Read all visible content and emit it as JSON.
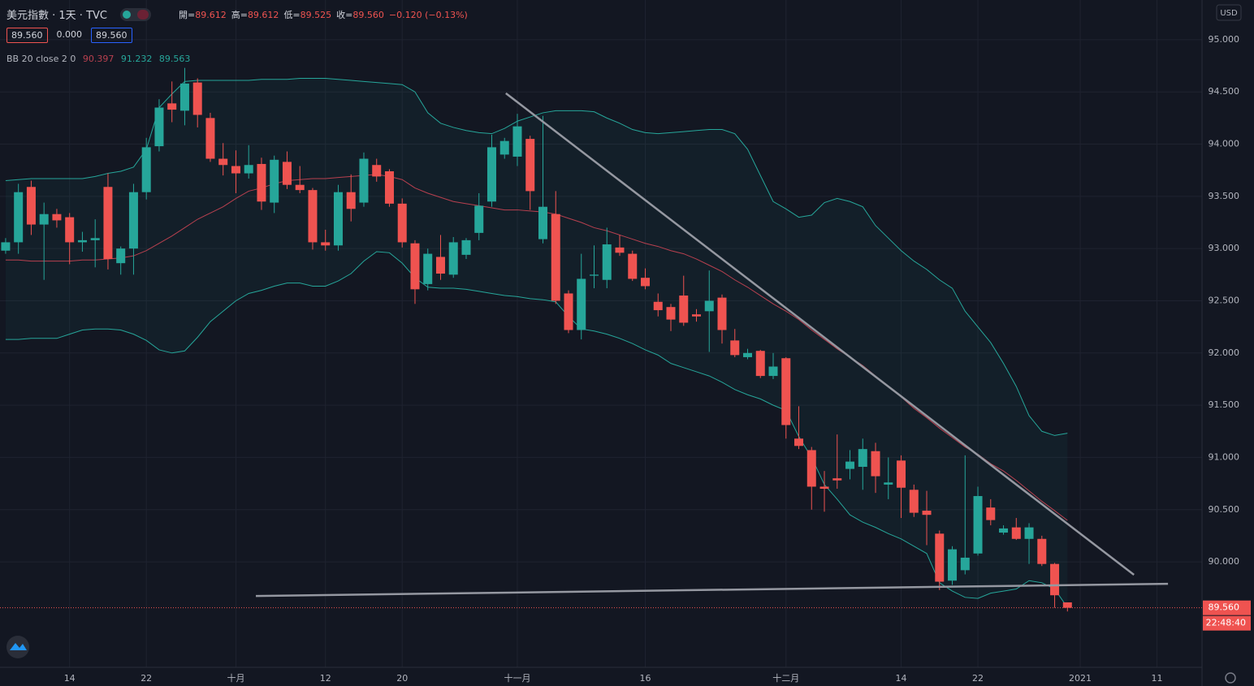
{
  "header": {
    "symbol": "美元指數 · 1天 · TVC",
    "quote": [
      {
        "label": "開=",
        "value": "89.612"
      },
      {
        "label": "高=",
        "value": "89.612"
      },
      {
        "label": "低=",
        "value": "89.525"
      },
      {
        "label": "收=",
        "value": "89.560"
      }
    ],
    "change": "−0.120 (−0.13%)",
    "badges": [
      "89.560",
      "0.000",
      "89.560"
    ],
    "currency": "USD",
    "price_tag": "89.560",
    "countdown": "22:48:40"
  },
  "chart_data": {
    "type": "candlestick",
    "up_color": "#26a69a",
    "down_color": "#ef5350",
    "open": [
      92.98,
      93.06,
      93.59,
      93.23,
      93.33,
      93.3,
      93.06,
      93.08,
      93.59,
      92.86,
      93.0,
      93.54,
      93.98,
      94.39,
      94.32,
      94.59,
      94.25,
      93.86,
      93.79,
      93.72,
      93.81,
      93.44,
      93.83,
      93.61,
      93.56,
      93.06,
      93.03,
      93.54,
      93.44,
      93.8,
      93.74,
      93.43,
      93.05,
      92.66,
      92.92,
      92.75,
      92.94,
      93.15,
      93.45,
      93.9,
      93.88,
      94.05,
      93.09,
      93.33,
      92.57,
      92.22,
      92.74,
      92.7,
      93.01,
      92.95,
      92.72,
      92.49,
      92.44,
      92.55,
      92.37,
      92.4,
      92.53,
      92.12,
      91.96,
      92.02,
      91.78,
      91.95,
      91.18,
      91.07,
      90.72,
      90.8,
      90.89,
      90.91,
      91.06,
      90.74,
      90.97,
      90.69,
      90.49,
      90.27,
      89.82,
      89.92,
      90.08,
      90.52,
      90.28,
      90.33,
      90.22,
      90.22,
      89.98,
      89.612
    ],
    "high": [
      93.1,
      93.62,
      93.65,
      93.44,
      93.38,
      93.34,
      93.16,
      93.28,
      93.72,
      93.02,
      93.62,
      94.06,
      94.43,
      94.6,
      94.73,
      94.63,
      94.3,
      94.01,
      93.94,
      93.99,
      93.87,
      93.89,
      93.93,
      93.79,
      93.58,
      93.18,
      93.61,
      93.71,
      93.92,
      93.86,
      93.76,
      93.48,
      93.08,
      93.0,
      93.13,
      93.11,
      93.1,
      93.53,
      94.09,
      94.06,
      94.29,
      94.08,
      94.27,
      93.55,
      92.6,
      92.95,
      93.03,
      93.2,
      93.13,
      92.98,
      92.81,
      92.57,
      92.47,
      92.74,
      92.42,
      92.79,
      92.56,
      92.23,
      92.04,
      92.03,
      92.0,
      91.96,
      91.49,
      91.1,
      90.87,
      91.22,
      91.07,
      91.18,
      91.14,
      91.0,
      91.02,
      90.74,
      90.68,
      90.3,
      90.15,
      91.02,
      90.72,
      90.6,
      90.35,
      90.42,
      90.37,
      90.25,
      89.99,
      89.612
    ],
    "low": [
      92.95,
      92.95,
      93.13,
      92.7,
      93.2,
      92.85,
      92.97,
      92.82,
      92.8,
      92.75,
      92.75,
      93.47,
      93.93,
      94.21,
      94.18,
      94.16,
      93.83,
      93.7,
      93.53,
      93.67,
      93.37,
      93.34,
      93.57,
      93.53,
      92.99,
      92.98,
      92.98,
      93.26,
      93.4,
      93.64,
      93.4,
      93.01,
      92.47,
      92.6,
      92.7,
      92.72,
      92.9,
      93.08,
      93.4,
      93.86,
      93.79,
      93.37,
      93.05,
      92.47,
      92.19,
      92.13,
      92.62,
      92.62,
      92.93,
      92.69,
      92.61,
      92.35,
      92.21,
      92.26,
      92.3,
      92.01,
      92.09,
      91.96,
      91.94,
      91.76,
      91.75,
      91.18,
      91.08,
      90.5,
      90.48,
      90.7,
      90.79,
      90.69,
      90.66,
      90.6,
      90.42,
      90.43,
      90.16,
      89.73,
      89.78,
      89.88,
      90.06,
      90.35,
      90.26,
      90.21,
      89.98,
      89.96,
      89.56,
      89.525
    ],
    "close": [
      93.06,
      93.54,
      93.23,
      93.33,
      93.27,
      93.06,
      93.08,
      93.1,
      92.9,
      93.0,
      93.54,
      93.97,
      94.35,
      94.33,
      94.58,
      94.28,
      93.86,
      93.8,
      93.72,
      93.8,
      93.45,
      93.85,
      93.61,
      93.56,
      93.06,
      93.03,
      93.54,
      93.38,
      93.86,
      93.69,
      93.43,
      93.06,
      92.61,
      92.95,
      92.76,
      93.06,
      93.08,
      93.41,
      93.97,
      94.03,
      94.17,
      93.55,
      93.4,
      92.5,
      92.22,
      92.71,
      92.75,
      93.04,
      92.96,
      92.71,
      92.64,
      92.41,
      92.32,
      92.29,
      92.35,
      92.5,
      92.22,
      91.98,
      92.0,
      91.78,
      91.87,
      91.31,
      91.11,
      90.72,
      90.7,
      90.78,
      90.96,
      91.08,
      90.82,
      90.76,
      90.71,
      90.47,
      90.45,
      89.81,
      90.12,
      90.04,
      90.63,
      90.4,
      90.32,
      90.22,
      90.33,
      89.98,
      89.68,
      89.56
    ],
    "bollinger": {
      "label": "BB 20 close 2 0",
      "upper_color": "#26a69a",
      "middle_color": "#b8404f",
      "lower_color": "#26a69a",
      "upper": [
        93.65,
        93.66,
        93.67,
        93.67,
        93.67,
        93.67,
        93.67,
        93.69,
        93.72,
        93.74,
        93.78,
        93.95,
        94.35,
        94.48,
        94.6,
        94.61,
        94.61,
        94.61,
        94.61,
        94.61,
        94.62,
        94.62,
        94.62,
        94.63,
        94.63,
        94.63,
        94.62,
        94.61,
        94.6,
        94.59,
        94.58,
        94.57,
        94.5,
        94.3,
        94.2,
        94.16,
        94.13,
        94.11,
        94.1,
        94.15,
        94.22,
        94.26,
        94.3,
        94.32,
        94.32,
        94.32,
        94.31,
        94.25,
        94.2,
        94.14,
        94.11,
        94.1,
        94.11,
        94.12,
        94.13,
        94.14,
        94.14,
        94.1,
        93.95,
        93.7,
        93.45,
        93.38,
        93.3,
        93.32,
        93.44,
        93.48,
        93.45,
        93.4,
        93.22,
        93.1,
        92.98,
        92.88,
        92.8,
        92.7,
        92.62,
        92.4,
        92.25,
        92.1,
        91.9,
        91.68,
        91.4,
        91.25,
        91.21,
        91.232
      ],
      "middle": [
        92.89,
        92.89,
        92.88,
        92.88,
        92.88,
        92.88,
        92.89,
        92.89,
        92.9,
        92.91,
        92.93,
        92.98,
        93.05,
        93.12,
        93.2,
        93.28,
        93.34,
        93.4,
        93.48,
        93.55,
        93.58,
        93.62,
        93.65,
        93.66,
        93.67,
        93.67,
        93.68,
        93.69,
        93.7,
        93.71,
        93.69,
        93.66,
        93.58,
        93.53,
        93.49,
        93.45,
        93.43,
        93.41,
        93.39,
        93.37,
        93.37,
        93.36,
        93.35,
        93.33,
        93.29,
        93.25,
        93.2,
        93.17,
        93.13,
        93.09,
        93.05,
        93.02,
        92.98,
        92.95,
        92.9,
        92.84,
        92.78,
        92.7,
        92.63,
        92.55,
        92.47,
        92.4,
        92.32,
        92.22,
        92.13,
        92.04,
        91.96,
        91.88,
        91.78,
        91.68,
        91.58,
        91.47,
        91.38,
        91.28,
        91.19,
        91.1,
        91.03,
        90.94,
        90.87,
        90.78,
        90.68,
        90.58,
        90.49,
        90.397
      ],
      "lower": [
        92.13,
        92.13,
        92.14,
        92.14,
        92.14,
        92.18,
        92.22,
        92.23,
        92.23,
        92.22,
        92.18,
        92.12,
        92.03,
        92.0,
        92.02,
        92.15,
        92.3,
        92.4,
        92.5,
        92.57,
        92.6,
        92.64,
        92.67,
        92.67,
        92.64,
        92.64,
        92.69,
        92.76,
        92.88,
        92.97,
        92.96,
        92.86,
        92.72,
        92.63,
        92.62,
        92.62,
        92.61,
        92.59,
        92.57,
        92.55,
        92.54,
        92.52,
        92.51,
        92.49,
        92.35,
        92.23,
        92.21,
        92.18,
        92.14,
        92.09,
        92.03,
        91.98,
        91.9,
        91.86,
        91.82,
        91.78,
        91.72,
        91.65,
        91.6,
        91.56,
        91.5,
        91.45,
        91.2,
        91.0,
        90.74,
        90.6,
        90.45,
        90.38,
        90.33,
        90.27,
        90.22,
        90.15,
        90.08,
        89.8,
        89.72,
        89.66,
        89.65,
        89.7,
        89.72,
        89.74,
        89.82,
        89.8,
        89.74,
        89.563
      ]
    },
    "trend_lines": [
      {
        "color": "#9598a1",
        "x": [
          39.1,
          88.2
        ],
        "y": [
          94.487,
          89.876
        ]
      },
      {
        "color": "#9598a1",
        "x": [
          19.56,
          90.86
        ],
        "y": [
          89.673,
          89.79
        ]
      }
    ],
    "xlim": [
      -0.44,
      93.52
    ],
    "ylim": [
      88.99,
      95.38
    ],
    "xticks": [
      {
        "value": 5,
        "label": "14"
      },
      {
        "value": 11,
        "label": "22"
      },
      {
        "value": 18,
        "label": "十月"
      },
      {
        "value": 25,
        "label": "12"
      },
      {
        "value": 31,
        "label": "20"
      },
      {
        "value": 40,
        "label": "十一月"
      },
      {
        "value": 50,
        "label": "16"
      },
      {
        "value": 61,
        "label": "十二月"
      },
      {
        "value": 70,
        "label": "14"
      },
      {
        "value": 76,
        "label": "22"
      },
      {
        "value": 84,
        "label": "2021"
      },
      {
        "value": 90,
        "label": "11"
      }
    ],
    "yticks": [
      {
        "value": 90,
        "label": "90.000"
      },
      {
        "value": 90.5,
        "label": "90.500"
      },
      {
        "value": 91,
        "label": "91.000"
      },
      {
        "value": 91.5,
        "label": "91.500"
      },
      {
        "value": 92,
        "label": "92.000"
      },
      {
        "value": 92.5,
        "label": "92.500"
      },
      {
        "value": 93,
        "label": "93.000"
      },
      {
        "value": 93.5,
        "label": "93.500"
      },
      {
        "value": 94,
        "label": "94.000"
      },
      {
        "value": 94.5,
        "label": "94.500"
      },
      {
        "value": 95,
        "label": "95.000"
      }
    ],
    "grid": true
  }
}
